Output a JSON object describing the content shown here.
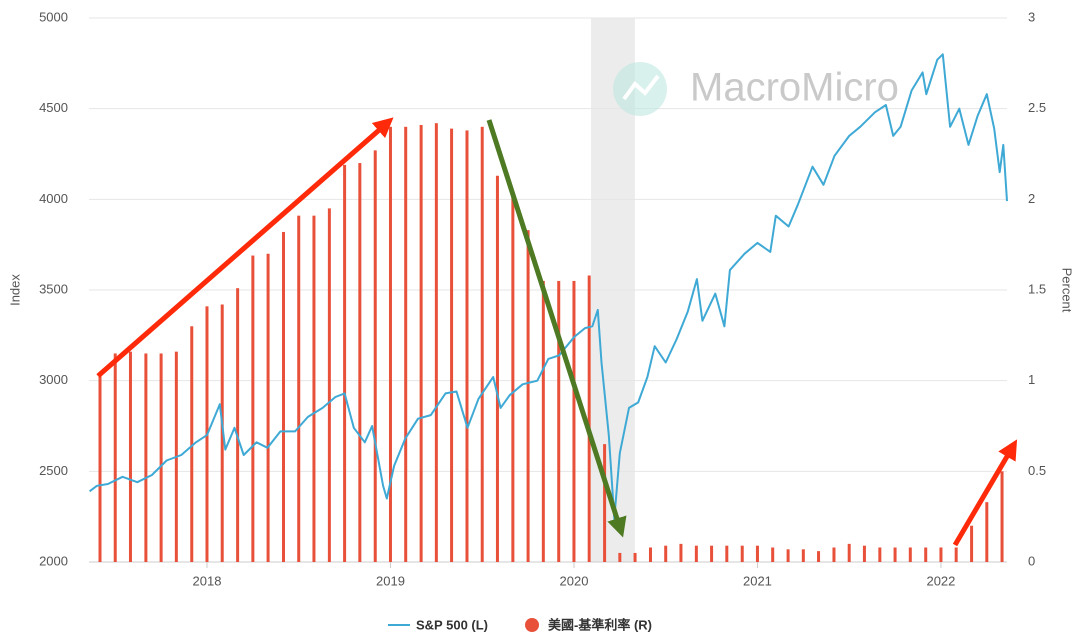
{
  "chart_data": {
    "type": "combo",
    "watermark": "MacroMicro",
    "xlim": [
      2017.357,
      2022.36
    ],
    "xticks": [
      2018,
      2019,
      2020,
      2021,
      2022
    ],
    "ylim": [
      2000,
      5000
    ],
    "yticks": [
      2000,
      2500,
      3000,
      3500,
      4000,
      4500,
      5000
    ],
    "y2lim": [
      0,
      3
    ],
    "y2ticks": [
      0,
      0.5,
      1,
      1.5,
      2,
      2.5,
      3
    ],
    "ylabel": "Index",
    "y2label": "Percent",
    "grid": true,
    "shade": [
      2020.093,
      2020.332
    ],
    "series": [
      {
        "name": "S&P 500 (L)",
        "type": "line",
        "axis": "y",
        "color": "#3fa9d5",
        "x": [
          2017.36,
          2017.4,
          2017.46,
          2017.54,
          2017.62,
          2017.7,
          2017.78,
          2017.86,
          2017.94,
          2018.0,
          2018.07,
          2018.1,
          2018.15,
          2018.2,
          2018.27,
          2018.33,
          2018.4,
          2018.48,
          2018.55,
          2018.63,
          2018.7,
          2018.75,
          2018.8,
          2018.86,
          2018.9,
          2018.96,
          2018.98,
          2019.02,
          2019.08,
          2019.15,
          2019.22,
          2019.3,
          2019.36,
          2019.42,
          2019.48,
          2019.56,
          2019.6,
          2019.65,
          2019.72,
          2019.8,
          2019.86,
          2019.92,
          2020.0,
          2020.06,
          2020.1,
          2020.13,
          2020.15,
          2020.19,
          2020.22,
          2020.25,
          2020.3,
          2020.35,
          2020.4,
          2020.44,
          2020.5,
          2020.56,
          2020.62,
          2020.67,
          2020.7,
          2020.77,
          2020.82,
          2020.85,
          2020.93,
          2021.0,
          2021.07,
          2021.1,
          2021.17,
          2021.22,
          2021.3,
          2021.36,
          2021.42,
          2021.5,
          2021.56,
          2021.64,
          2021.7,
          2021.74,
          2021.78,
          2021.84,
          2021.9,
          2021.92,
          2021.98,
          2022.01,
          2022.05,
          2022.1,
          2022.15,
          2022.2,
          2022.25,
          2022.29,
          2022.32,
          2022.34,
          2022.36
        ],
        "values": [
          2390,
          2420,
          2430,
          2470,
          2440,
          2480,
          2560,
          2590,
          2660,
          2700,
          2870,
          2620,
          2740,
          2590,
          2660,
          2630,
          2720,
          2720,
          2800,
          2850,
          2910,
          2930,
          2740,
          2660,
          2750,
          2420,
          2350,
          2530,
          2680,
          2790,
          2810,
          2930,
          2940,
          2740,
          2900,
          3020,
          2850,
          2920,
          2980,
          3000,
          3120,
          3140,
          3240,
          3290,
          3300,
          3390,
          3100,
          2700,
          2240,
          2600,
          2850,
          2880,
          3020,
          3190,
          3100,
          3230,
          3380,
          3560,
          3330,
          3480,
          3300,
          3610,
          3700,
          3760,
          3710,
          3910,
          3850,
          3970,
          4180,
          4080,
          4240,
          4350,
          4400,
          4480,
          4520,
          4350,
          4400,
          4600,
          4700,
          4580,
          4770,
          4800,
          4400,
          4500,
          4300,
          4460,
          4580,
          4390,
          4150,
          4300,
          3990
        ]
      },
      {
        "name": "美國-基準利率 (R)",
        "type": "bar",
        "axis": "y2",
        "color": "#e8503a",
        "x": [
          2017.417,
          2017.5,
          2017.583,
          2017.667,
          2017.75,
          2017.833,
          2017.917,
          2018.0,
          2018.083,
          2018.167,
          2018.25,
          2018.333,
          2018.417,
          2018.5,
          2018.583,
          2018.667,
          2018.75,
          2018.833,
          2018.917,
          2019.0,
          2019.083,
          2019.167,
          2019.25,
          2019.333,
          2019.417,
          2019.5,
          2019.583,
          2019.667,
          2019.75,
          2019.833,
          2019.917,
          2020.0,
          2020.083,
          2020.167,
          2020.25,
          2020.333,
          2020.417,
          2020.5,
          2020.583,
          2020.667,
          2020.75,
          2020.833,
          2020.917,
          2021.0,
          2021.083,
          2021.167,
          2021.25,
          2021.333,
          2021.417,
          2021.5,
          2021.583,
          2021.667,
          2021.75,
          2021.833,
          2021.917,
          2022.0,
          2022.083,
          2022.167,
          2022.25,
          2022.333
        ],
        "values": [
          1.04,
          1.15,
          1.16,
          1.15,
          1.15,
          1.16,
          1.3,
          1.41,
          1.42,
          1.51,
          1.69,
          1.7,
          1.82,
          1.91,
          1.91,
          1.95,
          2.19,
          2.2,
          2.27,
          2.4,
          2.4,
          2.41,
          2.42,
          2.39,
          2.38,
          2.4,
          2.13,
          2.04,
          1.83,
          1.55,
          1.55,
          1.55,
          1.58,
          0.65,
          0.05,
          0.05,
          0.08,
          0.09,
          0.1,
          0.09,
          0.09,
          0.09,
          0.09,
          0.09,
          0.08,
          0.07,
          0.07,
          0.06,
          0.08,
          0.1,
          0.09,
          0.08,
          0.08,
          0.08,
          0.08,
          0.08,
          0.08,
          0.2,
          0.33,
          0.5
        ]
      }
    ]
  }
}
